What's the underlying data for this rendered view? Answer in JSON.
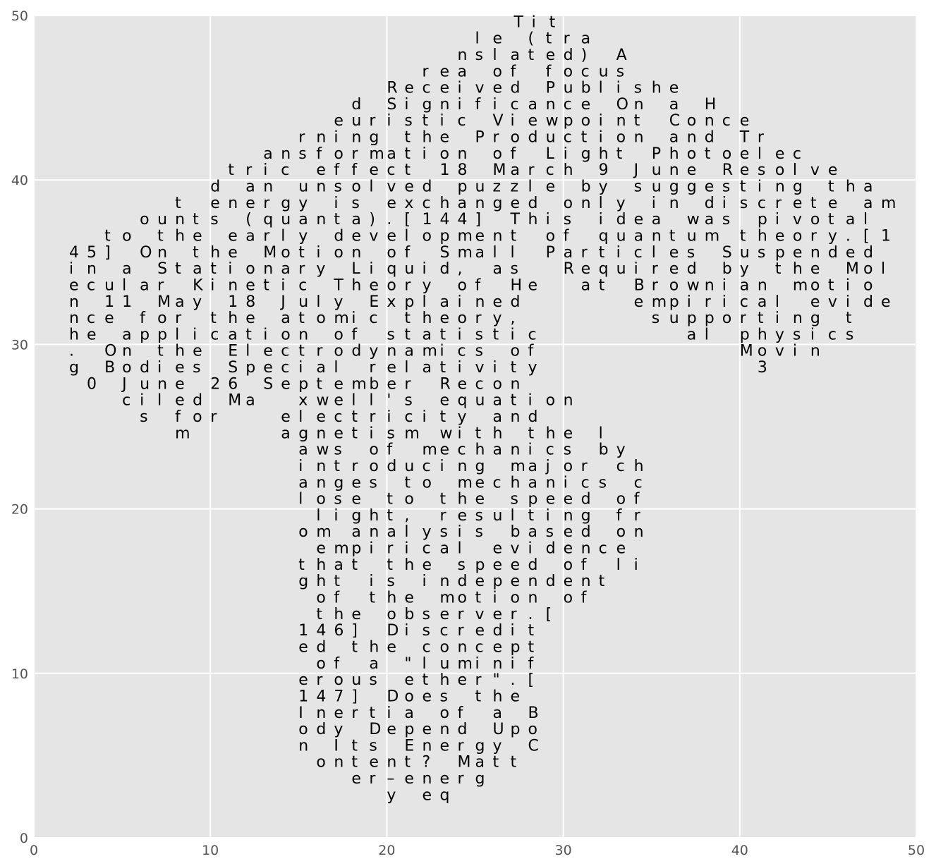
{
  "chart_data": {
    "type": "scatter",
    "title": "",
    "xlabel": "",
    "ylabel": "",
    "xlim": [
      0,
      50
    ],
    "ylim": [
      0,
      50
    ],
    "xticks": [
      0,
      10,
      20,
      30,
      40,
      50
    ],
    "yticks": [
      0,
      10,
      20,
      30,
      40,
      50
    ],
    "grid": true,
    "style": "ggplot",
    "colors": {
      "background": "#E5E5E5",
      "grid": "#FFFFFF",
      "text": "#000000",
      "tick_label": "#555555"
    },
    "text_rows": [
      {
        "y": 49.3,
        "x0": 27.2,
        "text": "Tit"
      },
      {
        "y": 48.3,
        "x0": 25.0,
        "text": "le (tra"
      },
      {
        "y": 47.3,
        "x0": 24.0,
        "text": "nslated) A"
      },
      {
        "y": 46.3,
        "x0": 22.0,
        "text": "rea of focus"
      },
      {
        "y": 45.3,
        "x0": 20.0,
        "text": "Received Publishe"
      },
      {
        "y": 44.3,
        "x0": 18.0,
        "text": "d Significance On a H"
      },
      {
        "y": 43.3,
        "x0": 17.0,
        "text": "euristic Viewpoint Conce"
      },
      {
        "y": 42.3,
        "x0": 15.0,
        "text": "rning the Production and Tr"
      },
      {
        "y": 41.3,
        "x0": 13.0,
        "text": "ansformation of Light Photoelec"
      },
      {
        "y": 40.3,
        "x0": 11.0,
        "text": "tric effect 18 March 9 June Resolve"
      },
      {
        "y": 39.3,
        "x0": 10.0,
        "text": "d an unsolved puzzle by suggesting tha"
      },
      {
        "y": 38.3,
        "x0": 8.0,
        "text": "t energy is exchanged only in discrete am"
      },
      {
        "y": 37.3,
        "x0": 6.0,
        "text": "ounts (quanta).[144] This idea was pivotal"
      },
      {
        "y": 36.3,
        "x0": 4.0,
        "text": "to the early development of quantum theory.[1"
      },
      {
        "y": 35.3,
        "x0": 2.0,
        "text": "45] On the Motion of Small Particles Suspended"
      },
      {
        "y": 34.3,
        "x0": 2.0,
        "text": "in a Stationary Liquid, as  Required by the Mol"
      },
      {
        "y": 33.3,
        "x0": 2.0,
        "text": "ecular Kinetic Theory of He  at Brownian motio"
      },
      {
        "y": 32.3,
        "x0": 2.0,
        "text": "n 11 May 18 July Explained      empirical evide"
      },
      {
        "y": 31.3,
        "x0": 2.0,
        "text": "nce for the atomic theory,       supporting t"
      },
      {
        "y": 30.3,
        "x0": 2.0,
        "text": "he application of statistic        al physics"
      },
      {
        "y": 29.3,
        "x0": 2.0,
        "text": ". On the Electrodynamics of           Movin"
      },
      {
        "y": 28.3,
        "x0": 2.0,
        "text": "g Bodies Special relativity            3"
      },
      {
        "y": 27.3,
        "x0": 3.0,
        "text": "0 June 26 September Recon"
      },
      {
        "y": 26.3,
        "x0": 5.0,
        "text": "ciled Ma  xwell's equation"
      },
      {
        "y": 25.3,
        "x0": 6.0,
        "text": "s for   electricity and"
      },
      {
        "y": 24.3,
        "x0": 8.0,
        "text": "m     agnetism with the l"
      },
      {
        "y": 23.3,
        "x0": 15.0,
        "text": "aws of mechanics by"
      },
      {
        "y": 22.3,
        "x0": 15.0,
        "text": "introducing major ch"
      },
      {
        "y": 21.3,
        "x0": 15.0,
        "text": "anges to mechanics c"
      },
      {
        "y": 20.3,
        "x0": 15.0,
        "text": "lose to the speed of"
      },
      {
        "y": 19.3,
        "x0": 16.0,
        "text": "light, resulting fr"
      },
      {
        "y": 18.3,
        "x0": 15.0,
        "text": "om analysis based on"
      },
      {
        "y": 17.3,
        "x0": 16.0,
        "text": "empirical evidence"
      },
      {
        "y": 16.3,
        "x0": 15.0,
        "text": "that the speed of li"
      },
      {
        "y": 15.3,
        "x0": 15.0,
        "text": "ght is independent"
      },
      {
        "y": 14.3,
        "x0": 16.0,
        "text": "of the motion of"
      },
      {
        "y": 13.3,
        "x0": 16.0,
        "text": "the observer.["
      },
      {
        "y": 12.3,
        "x0": 15.0,
        "text": "146] Discredit"
      },
      {
        "y": 11.3,
        "x0": 15.0,
        "text": "ed the concept"
      },
      {
        "y": 10.3,
        "x0": 16.0,
        "text": "of a \"luminif"
      },
      {
        "y": 9.3,
        "x0": 15.0,
        "text": "erous ether\".["
      },
      {
        "y": 8.3,
        "x0": 15.0,
        "text": "147] Does the"
      },
      {
        "y": 7.3,
        "x0": 15.0,
        "text": "Inertia of a B"
      },
      {
        "y": 6.3,
        "x0": 15.0,
        "text": "ody Depend Upo"
      },
      {
        "y": 5.3,
        "x0": 15.0,
        "text": "n Its Energy C"
      },
      {
        "y": 4.3,
        "x0": 16.0,
        "text": "ontent? Matt"
      },
      {
        "y": 3.3,
        "x0": 18.0,
        "text": "er–energ"
      },
      {
        "y": 2.3,
        "x0": 20.0,
        "text": "y eq"
      }
    ],
    "char_step": 1.0
  }
}
